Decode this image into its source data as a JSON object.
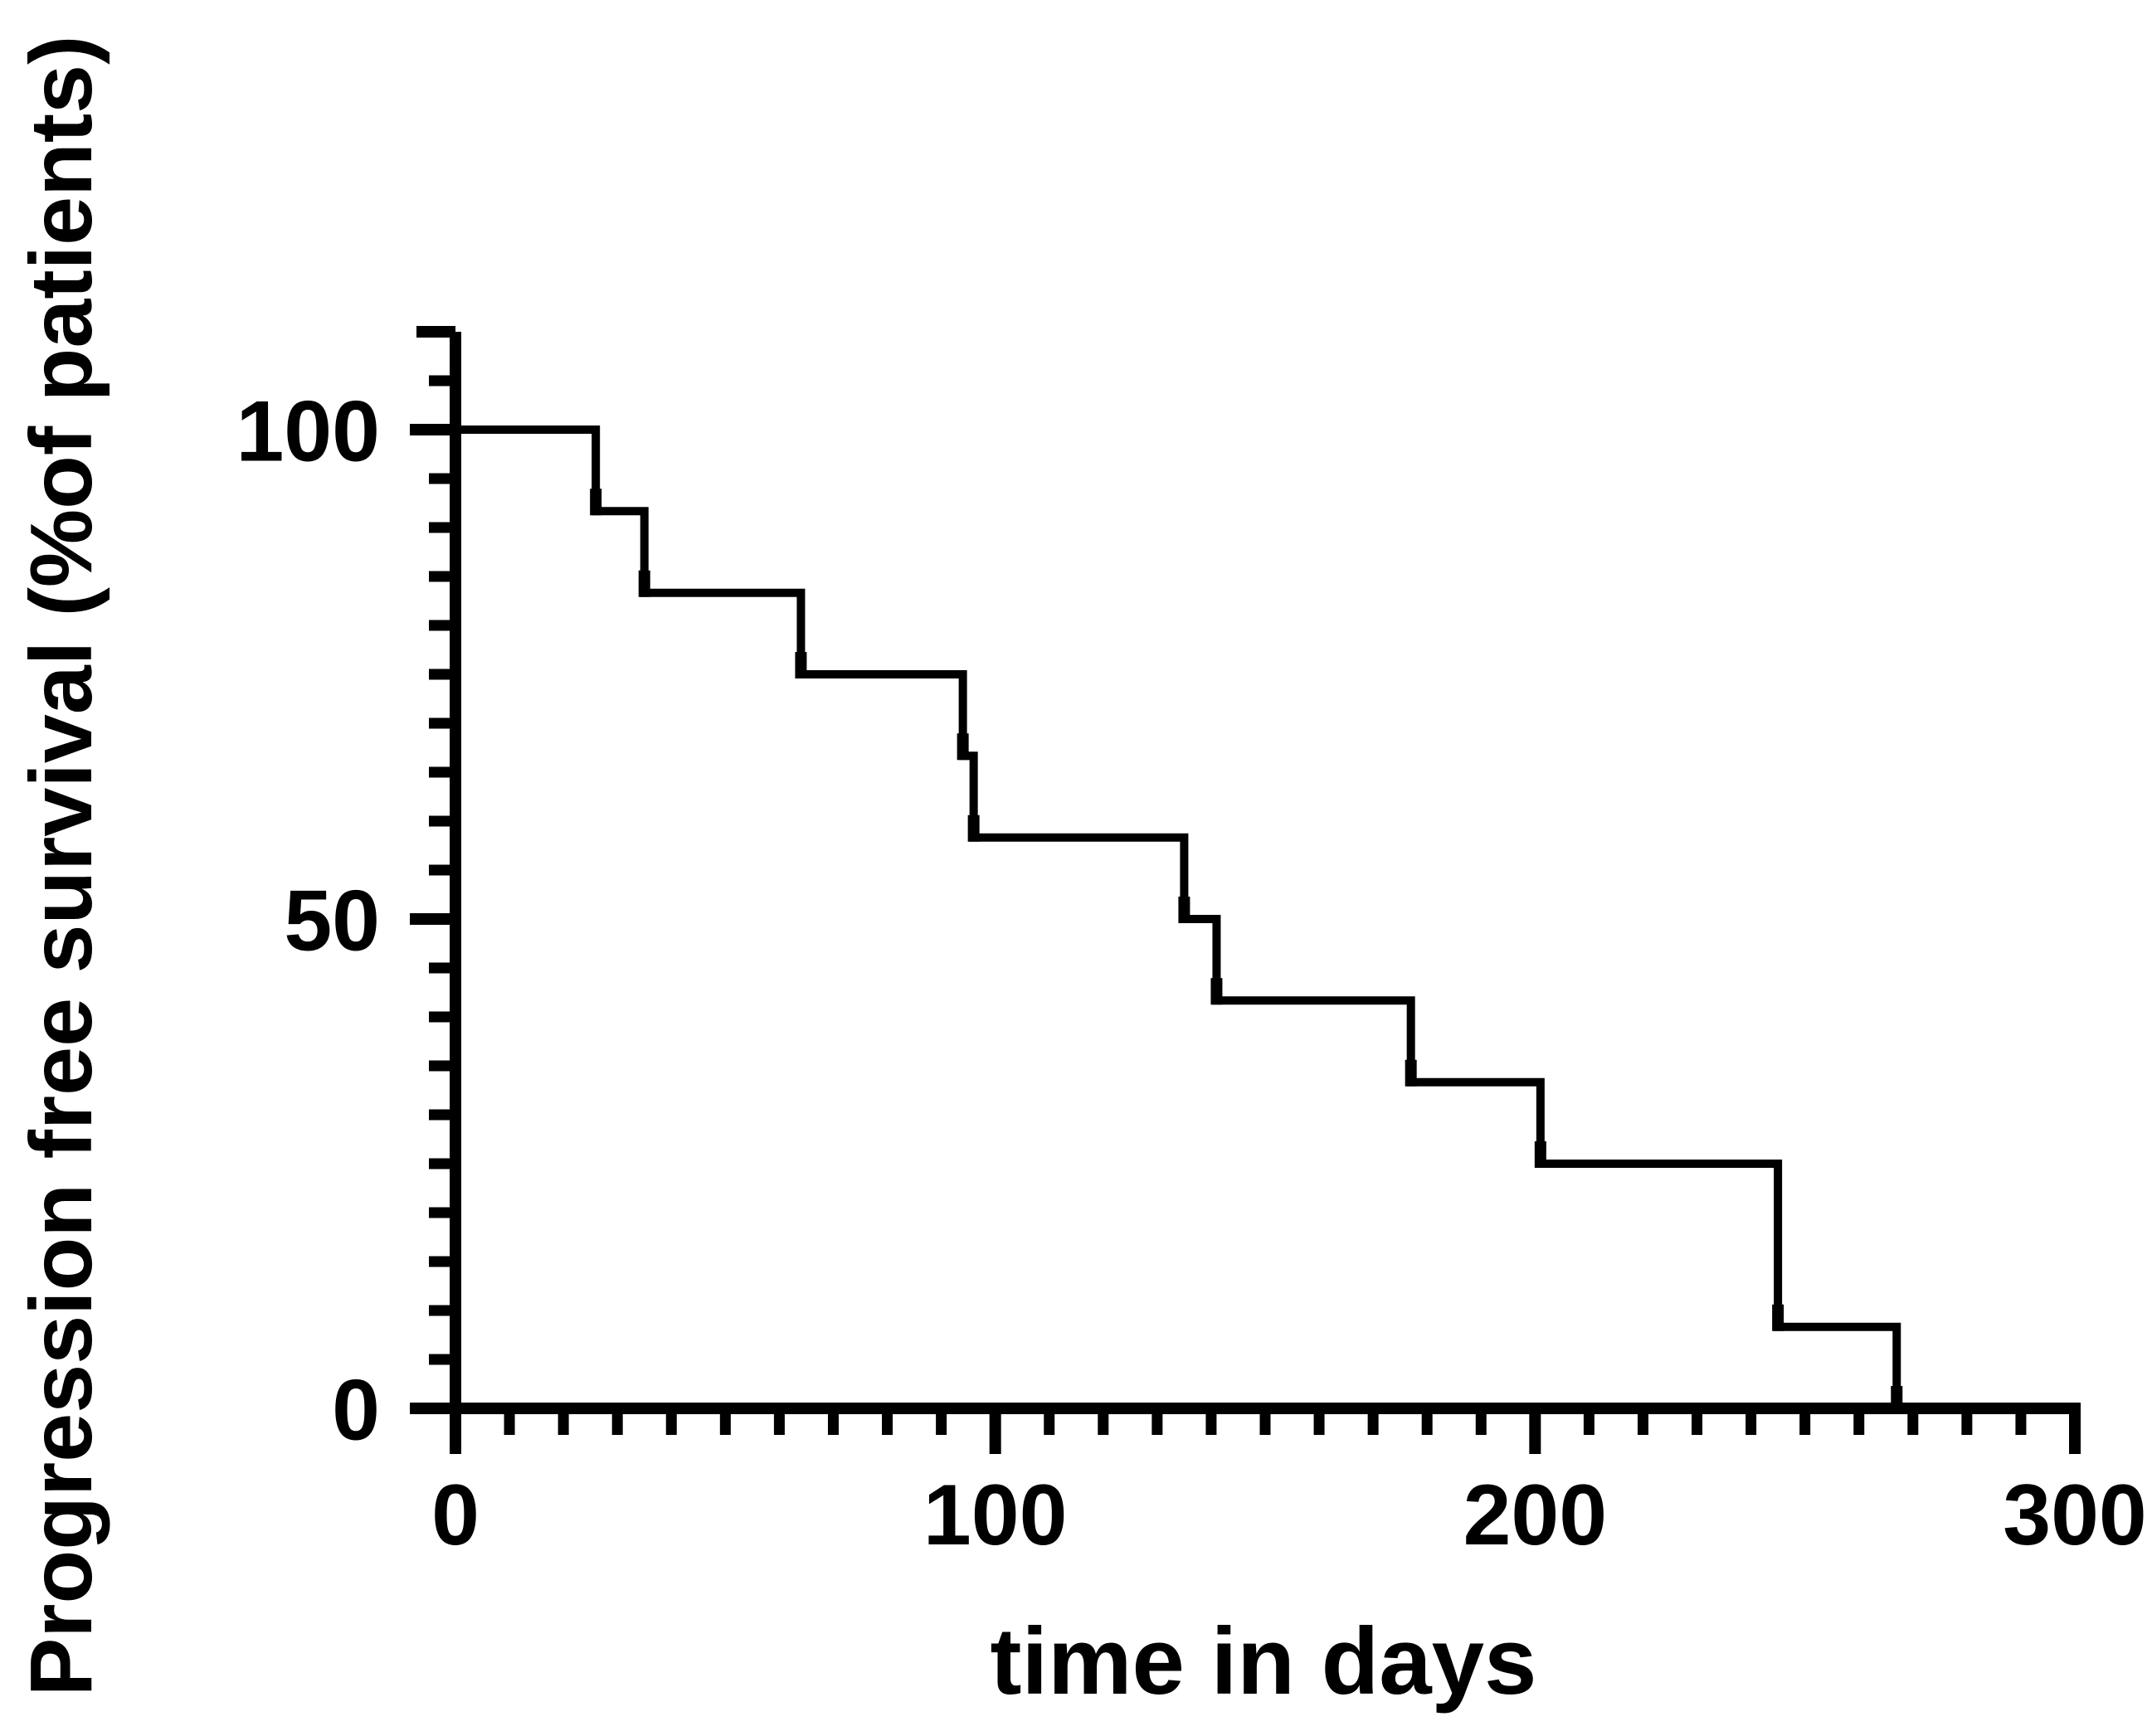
{
  "figure": {
    "background_color": "#ffffff",
    "ink_color": "#000000"
  },
  "chart_data": {
    "type": "line",
    "subtype": "kaplan-meier-survival-step",
    "title": "",
    "xlabel": "time in days",
    "ylabel": "Progression free survival  (%of patients)",
    "xlim": [
      0,
      300
    ],
    "ylim": [
      0,
      100
    ],
    "grid": false,
    "legend_position": "none",
    "x_ticks_major": [
      0,
      100,
      200,
      300
    ],
    "x_tick_labels": [
      "0",
      "100",
      "200",
      "300"
    ],
    "x_minor_tick_interval": 10,
    "y_ticks_major": [
      0,
      50,
      100
    ],
    "y_tick_labels": [
      "0",
      "50",
      "100"
    ],
    "y_minor_tick_interval": 5,
    "series": [
      {
        "name": "progression-free-survival-curve",
        "color": "#000000",
        "marker": "event-tick",
        "steps_day_percent": [
          [
            0,
            100
          ],
          [
            26,
            91.67
          ],
          [
            35,
            83.33
          ],
          [
            64,
            75
          ],
          [
            94,
            66.67
          ],
          [
            96,
            58.33
          ],
          [
            135,
            50
          ],
          [
            141,
            41.67
          ],
          [
            177,
            33.33
          ],
          [
            201,
            25
          ],
          [
            245,
            8.33
          ],
          [
            267,
            0
          ]
        ]
      }
    ]
  }
}
